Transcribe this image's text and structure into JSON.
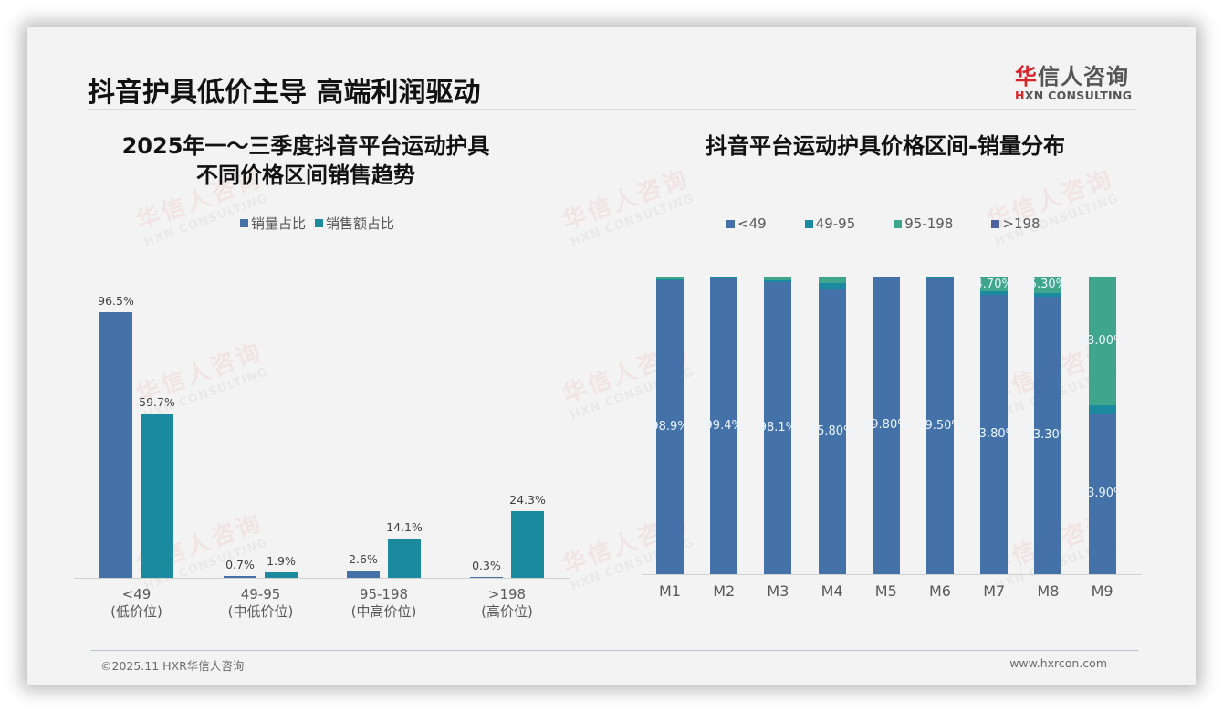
{
  "page": {
    "title": "抖音护具低价主导 高端利润驱动",
    "logo": {
      "cn_red": "华",
      "cn_rest": "信人咨询",
      "en_red": "H",
      "en_rest": "XN CONSULTING"
    },
    "watermark": {
      "cn": "华信人咨询",
      "en": "HXN CONSULTING"
    },
    "footer": {
      "copyright": "©2025.11 HXR华信人咨询",
      "website": "www.hxrcon.com"
    }
  },
  "left_chart": {
    "title_line1": "2025年一～三季度抖音平台运动护具",
    "title_line2": "不同价格区间销售趋势",
    "legend": [
      {
        "label": "销量占比",
        "color": "#4472a8"
      },
      {
        "label": "销售额占比",
        "color": "#1b8a9e"
      }
    ],
    "categories": [
      {
        "range": "<49",
        "tier": "(低价位)"
      },
      {
        "range": "49-95",
        "tier": "(中低价位)"
      },
      {
        "range": "95-198",
        "tier": "(中高价位)"
      },
      {
        "range": ">198",
        "tier": "(高价位)"
      }
    ],
    "volume_labels": [
      "96.5%",
      "0.7%",
      "2.6%",
      "0.3%"
    ],
    "sales_labels": [
      "59.7%",
      "1.9%",
      "14.1%",
      "24.3%"
    ]
  },
  "right_chart": {
    "title": "抖音平台运动护具价格区间-销量分布",
    "legend": [
      {
        "label": "<49",
        "color": "#4472a8"
      },
      {
        "label": "49-95",
        "color": "#1b8a9e"
      },
      {
        "label": "95-198",
        "color": "#3fa58c"
      },
      {
        "label": ">198",
        "color": "#4d63a0"
      }
    ],
    "months": [
      "M1",
      "M2",
      "M3",
      "M4",
      "M5",
      "M6",
      "M7",
      "M8",
      "M9"
    ],
    "lt49_labels": [
      "98.9%",
      "99.4%",
      "98.1%",
      "95.80%",
      "99.80%",
      "99.50%",
      "93.80%",
      "93.30%",
      "53.90%"
    ]
  },
  "chart_data": [
    {
      "type": "bar",
      "title": "2025年一～三季度抖音平台运动护具不同价格区间销售趋势",
      "categories": [
        "<49 (低价位)",
        "49-95 (中低价位)",
        "95-198 (中高价位)",
        ">198 (高价位)"
      ],
      "series": [
        {
          "name": "销量占比",
          "values": [
            96.5,
            0.7,
            2.6,
            0.3
          ],
          "color": "#4472a8"
        },
        {
          "name": "销售额占比",
          "values": [
            59.7,
            1.9,
            14.1,
            24.3
          ],
          "color": "#1b8a9e"
        }
      ],
      "xlabel": "",
      "ylabel": "",
      "unit": "%",
      "legend_position": "top",
      "grid": false,
      "ylim": [
        0,
        100
      ]
    },
    {
      "type": "bar",
      "stacked": true,
      "title": "抖音平台运动护具价格区间-销量分布",
      "categories": [
        "M1",
        "M2",
        "M3",
        "M4",
        "M5",
        "M6",
        "M7",
        "M8",
        "M9"
      ],
      "series": [
        {
          "name": "<49",
          "values": [
            98.9,
            99.4,
            98.1,
            95.8,
            99.8,
            99.5,
            93.8,
            93.3,
            53.9
          ],
          "color": "#4472a8"
        },
        {
          "name": "49-95",
          "values": [
            0.2,
            0.4,
            0.6,
            2.0,
            0.1,
            0.1,
            1.2,
            1.2,
            2.8
          ],
          "color": "#1b8a9e"
        },
        {
          "name": "95-198",
          "values": [
            0.9,
            0.2,
            1.3,
            2.0,
            0.1,
            0.4,
            4.7,
            5.3,
            43.0
          ],
          "color": "#3fa58c"
        },
        {
          "name": ">198",
          "values": [
            0.0,
            0.0,
            0.0,
            0.2,
            0.0,
            0.0,
            0.3,
            0.2,
            0.3
          ],
          "color": "#4d63a0"
        }
      ],
      "xlabel": "",
      "ylabel": "",
      "unit": "%",
      "legend_position": "top",
      "grid": false,
      "ylim": [
        0,
        100
      ]
    }
  ]
}
